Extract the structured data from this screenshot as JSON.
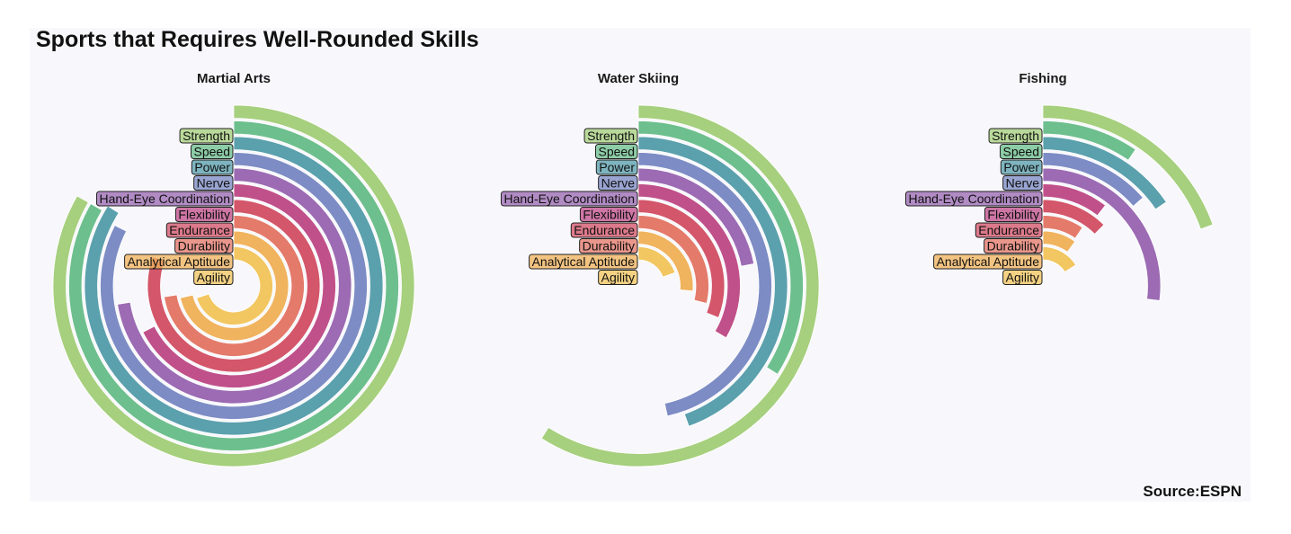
{
  "title": "Sports that Requires Well-Rounded Skills",
  "source": "Source:ESPN",
  "chart_data": {
    "type": "radial-bar",
    "title": "Sports that Requires Well-Rounded Skills",
    "skills": [
      "Strength",
      "Speed",
      "Power",
      "Nerve",
      "Hand-Eye Coordination",
      "Flexibility",
      "Endurance",
      "Durability",
      "Analytical Aptitude",
      "Agility"
    ],
    "colors": [
      "#a6cf7e",
      "#6dbf8d",
      "#5ba0ad",
      "#7d8cc4",
      "#9c6bb3",
      "#c0508a",
      "#d3566a",
      "#e47a6a",
      "#f0b35e",
      "#f2c660"
    ],
    "max_value": 10,
    "facets": [
      {
        "name": "Martial Arts",
        "values": [
          8.33,
          8.33,
          8.4,
          8.25,
          7.25,
          6.75,
          8.05,
          7.25,
          7.15,
          7.0
        ]
      },
      {
        "name": "Water Skiing",
        "values": [
          5.9,
          3.4,
          4.45,
          4.65,
          2.2,
          3.35,
          3.1,
          2.9,
          2.65,
          1.95
        ]
      },
      {
        "name": "Fishing",
        "values": [
          1.95,
          0.95,
          1.55,
          1.35,
          2.7,
          1.05,
          1.25,
          0.95,
          1.0,
          1.6
        ]
      }
    ]
  }
}
